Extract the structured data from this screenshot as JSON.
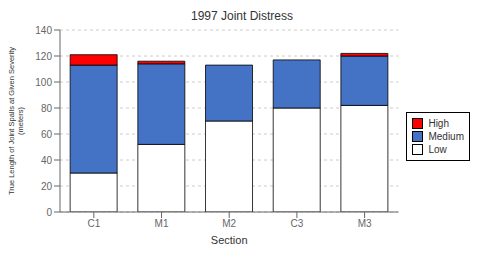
{
  "chart_data": {
    "type": "bar",
    "stacked": true,
    "title": "1997 Joint Distress",
    "xlabel": "Section",
    "ylabel": "True Length of Joint Spalls at Given Severity\n(meters)",
    "categories": [
      "C1",
      "M1",
      "M2",
      "C3",
      "M3"
    ],
    "series": [
      {
        "name": "Low",
        "color": "#ffffff",
        "values": [
          30,
          52,
          70,
          80,
          82
        ]
      },
      {
        "name": "Medium",
        "color": "#4472c4",
        "values": [
          83,
          62,
          43,
          37,
          38
        ]
      },
      {
        "name": "High",
        "color": "#ff0000",
        "values": [
          8,
          2,
          0,
          0,
          2
        ]
      }
    ],
    "ylim": [
      0,
      140
    ],
    "yticks": [
      0,
      20,
      40,
      60,
      80,
      100,
      120,
      140
    ],
    "grid": true,
    "legend": "right"
  }
}
